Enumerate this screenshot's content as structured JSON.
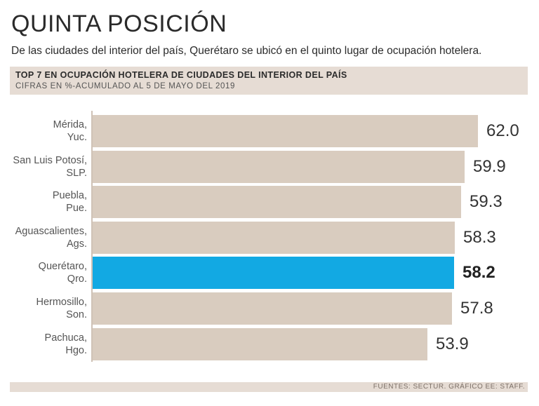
{
  "header": {
    "title": "QUINTA POSICIÓN",
    "subtitle": "De las ciudades del interior del país, Querétaro se ubicó en el quinto lugar de ocupación hotelera."
  },
  "chart_header": {
    "heading": "TOP 7 EN OCUPACIÓN HOTELERA DE CIUDADES DEL INTERIOR DEL PAÍS",
    "subheading": "CIFRAS EN %-ACUMULADO AL 5 DE MAYO DEL 2019"
  },
  "chart_data": {
    "type": "bar",
    "orientation": "horizontal",
    "title": "TOP 7 EN OCUPACIÓN HOTELERA DE CIUDADES DEL INTERIOR DEL PAÍS",
    "subtitle": "CIFRAS EN %-ACUMULADO AL 5 DE MAYO DEL 2019",
    "categories": [
      [
        "Mérida,",
        "Yuc."
      ],
      [
        "San Luis Potosí,",
        "SLP."
      ],
      [
        "Puebla,",
        "Pue."
      ],
      [
        "Aguascalientes,",
        "Ags."
      ],
      [
        "Querétaro,",
        "Qro."
      ],
      [
        "Hermosillo,",
        "Son."
      ],
      [
        "Pachuca,",
        "Hgo."
      ]
    ],
    "values": [
      62.0,
      59.9,
      59.3,
      58.3,
      58.2,
      57.8,
      53.9
    ],
    "value_labels": [
      "62.0",
      "59.9",
      "59.3",
      "58.3",
      "58.2",
      "57.8",
      "53.9"
    ],
    "highlight_index": 4,
    "xlim": [
      0,
      62.0
    ],
    "xlabel": "",
    "ylabel": ""
  },
  "colors": {
    "bar": "#d9ccbf",
    "highlight": "#12a9e3",
    "band": "#e6dcd4"
  },
  "footer": {
    "source": "FUENTES: SECTUR. GRÁFICO EE: STAFF."
  }
}
